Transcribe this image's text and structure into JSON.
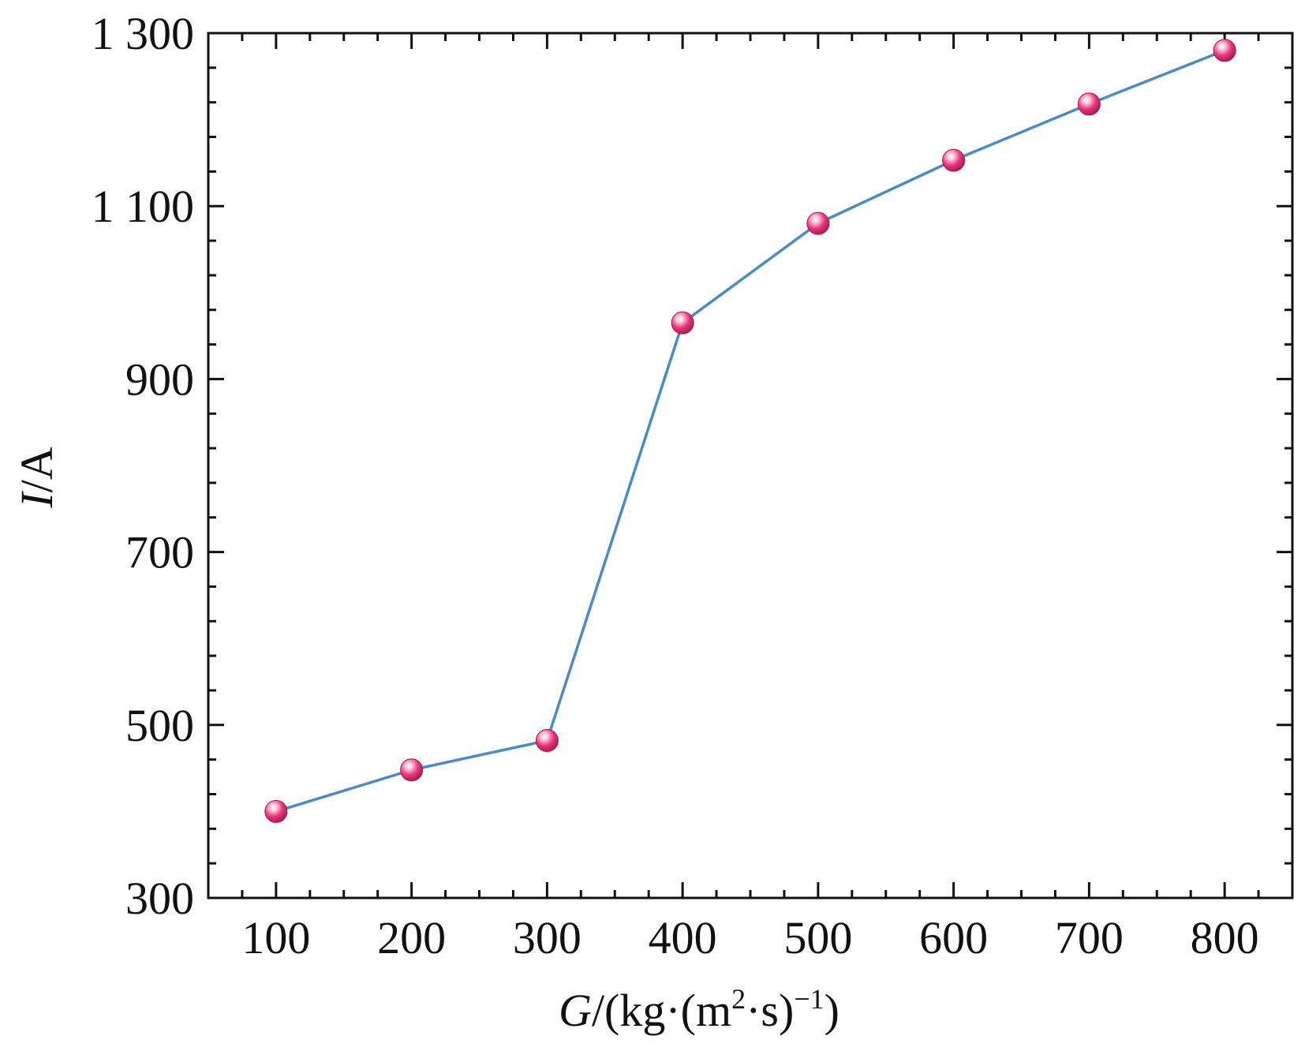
{
  "chart_data": {
    "type": "line",
    "title": "",
    "xlabel": {
      "variable": "G",
      "unit_open": "/(kg·(m",
      "unit_sup1": "2",
      "unit_mid": "·s)",
      "unit_sup2": "−1",
      "unit_close": ")"
    },
    "ylabel": {
      "variable": "I",
      "unit": "/A"
    },
    "xlim": [
      50,
      850
    ],
    "ylim": [
      300,
      1300
    ],
    "x_ticks": [
      100,
      200,
      300,
      400,
      500,
      600,
      700,
      800
    ],
    "x_tick_labels": [
      "100",
      "200",
      "300",
      "400",
      "500",
      "600",
      "700",
      "800"
    ],
    "y_ticks": [
      300,
      500,
      700,
      900,
      1100,
      1300
    ],
    "y_tick_labels": [
      "300",
      "500",
      "700",
      "900",
      "1 100",
      "1 300"
    ],
    "grid": false,
    "legend": "none",
    "series": [
      {
        "x": [
          100,
          200,
          300,
          400,
          500,
          600,
          700,
          800
        ],
        "values": [
          400,
          448,
          482,
          965,
          1080,
          1153,
          1218,
          1280
        ]
      }
    ],
    "colors": {
      "line": "#4a8bc4",
      "marker": "#e8387a",
      "marker_highlight": "#ffffff",
      "axis": "#111111"
    }
  }
}
